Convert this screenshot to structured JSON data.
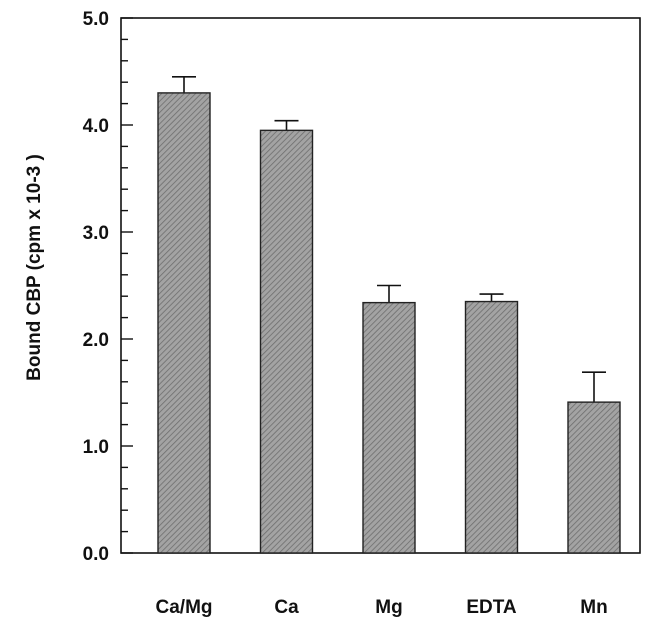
{
  "chart_data": {
    "type": "bar",
    "title": "",
    "xlabel": "",
    "ylabel": "Bound CBP (cpm x 10-3 )",
    "ylim": [
      0,
      5
    ],
    "yticks": [
      {
        "value": 0,
        "label": "0.0"
      },
      {
        "value": 1,
        "label": "1.0"
      },
      {
        "value": 2,
        "label": "2.0"
      },
      {
        "value": 3,
        "label": "3.0"
      },
      {
        "value": 4,
        "label": "4.0"
      },
      {
        "value": 5,
        "label": "5.0"
      }
    ],
    "minor_step": 0.2,
    "categories": [
      "Ca/Mg",
      "Ca",
      "Mg",
      "EDTA",
      "Mn"
    ],
    "values": [
      4.3,
      3.95,
      2.34,
      2.35,
      1.41
    ],
    "errors": [
      0.15,
      0.09,
      0.16,
      0.07,
      0.28
    ],
    "grid": false,
    "bar_color": "#9a9a9a"
  }
}
